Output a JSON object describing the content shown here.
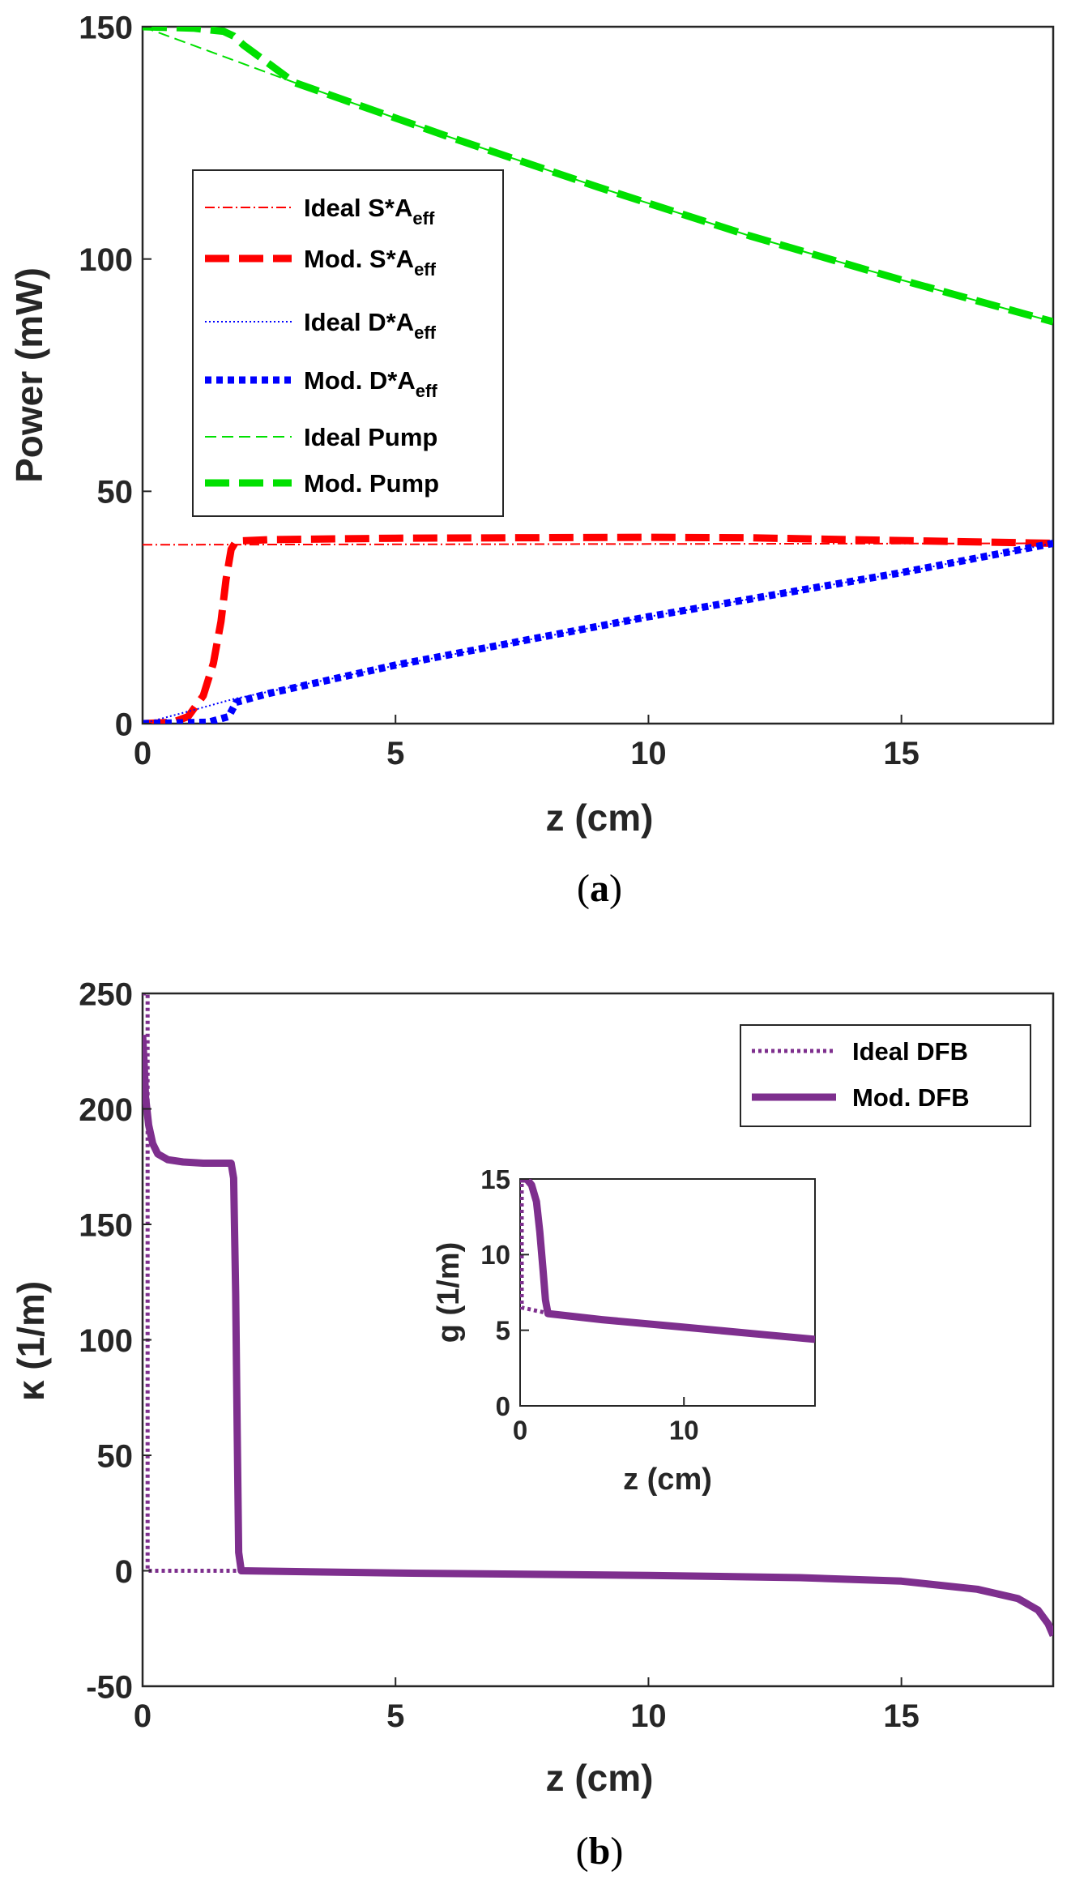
{
  "colors": {
    "red": "#ff0000",
    "blue": "#0000ff",
    "green": "#00e000",
    "purple": "#7e2f8e",
    "axis": "#262626"
  },
  "chart_data": [
    {
      "id": "a",
      "type": "line",
      "caption": "a",
      "xlabel": "z (cm)",
      "ylabel": "Power (mW)",
      "xlim": [
        0,
        18
      ],
      "ylim": [
        0,
        150
      ],
      "xticks": [
        0,
        5,
        10,
        15
      ],
      "yticks": [
        0,
        50,
        100,
        150
      ],
      "legend_position": "left-center",
      "series": [
        {
          "name": "Ideal S*A",
          "sub": "eff",
          "style": "dashdot-thin",
          "color": "#ff0000",
          "points": [
            [
              0,
              38.5
            ],
            [
              18,
              38.8
            ]
          ]
        },
        {
          "name": "Mod. S*A",
          "sub": "eff",
          "style": "dash-thick",
          "color": "#ff0000",
          "points": [
            [
              0,
              0
            ],
            [
              0.6,
              0.3
            ],
            [
              0.9,
              1.5
            ],
            [
              1.2,
              6
            ],
            [
              1.4,
              13
            ],
            [
              1.55,
              22
            ],
            [
              1.65,
              31
            ],
            [
              1.75,
              37.5
            ],
            [
              1.85,
              39.3
            ],
            [
              2.5,
              39.6
            ],
            [
              5,
              39.9
            ],
            [
              10,
              40.1
            ],
            [
              12,
              40
            ],
            [
              15,
              39.4
            ],
            [
              18,
              38.8
            ]
          ]
        },
        {
          "name": "Ideal D*A",
          "sub": "eff",
          "style": "dot-thin",
          "color": "#0000ff",
          "points": [
            [
              0,
              0
            ],
            [
              1,
              2.9
            ],
            [
              1.8,
              5.3
            ],
            [
              5,
              12.5
            ],
            [
              10,
              23
            ],
            [
              15,
              32.5
            ],
            [
              18,
              38.8
            ]
          ]
        },
        {
          "name": "Mod. D*A",
          "sub": "eff",
          "style": "dot-thick",
          "color": "#0000ff",
          "points": [
            [
              0,
              0
            ],
            [
              1.3,
              0.3
            ],
            [
              1.7,
              1.5
            ],
            [
              1.85,
              4.6
            ],
            [
              2.5,
              6.5
            ],
            [
              5,
              12.6
            ],
            [
              10,
              23
            ],
            [
              15,
              32.5
            ],
            [
              18,
              38.8
            ]
          ]
        },
        {
          "name": "Ideal Pump",
          "sub": "",
          "style": "dash-thin",
          "color": "#00e000",
          "points": [
            [
              0,
              150
            ],
            [
              3,
              138
            ],
            [
              6,
              126.5
            ],
            [
              9,
              115.5
            ],
            [
              12,
              105
            ],
            [
              15,
              95.5
            ],
            [
              18,
              86.5
            ]
          ]
        },
        {
          "name": "Mod. Pump",
          "sub": "",
          "style": "dash-thick",
          "color": "#00e000",
          "points": [
            [
              0,
              150
            ],
            [
              1,
              149.7
            ],
            [
              1.6,
              149
            ],
            [
              1.8,
              148
            ],
            [
              2,
              146
            ],
            [
              3,
              138
            ],
            [
              6,
              126.5
            ],
            [
              9,
              115.5
            ],
            [
              12,
              105
            ],
            [
              15,
              95.5
            ],
            [
              18,
              86.5
            ]
          ]
        }
      ]
    },
    {
      "id": "b",
      "type": "line",
      "caption": "b",
      "xlabel": "z (cm)",
      "ylabel": "κ (1/m)",
      "xlim": [
        0,
        18
      ],
      "ylim": [
        -50,
        250
      ],
      "xticks": [
        0,
        5,
        10,
        15
      ],
      "yticks": [
        -50,
        0,
        50,
        100,
        150,
        200,
        250
      ],
      "legend_position": "top-right",
      "series": [
        {
          "name": "Ideal DFB",
          "style": "dot-mid",
          "color": "#7e2f8e",
          "points": [
            [
              0,
              250
            ],
            [
              0.1,
              250
            ],
            [
              0.1,
              0
            ],
            [
              1.85,
              0
            ]
          ]
        },
        {
          "name": "Mod. DFB",
          "style": "solid-thick",
          "color": "#7e2f8e",
          "points": [
            [
              0,
              232
            ],
            [
              0.03,
              220
            ],
            [
              0.06,
              205
            ],
            [
              0.12,
              193
            ],
            [
              0.2,
              185
            ],
            [
              0.3,
              180.5
            ],
            [
              0.5,
              178
            ],
            [
              0.8,
              177
            ],
            [
              1.2,
              176.5
            ],
            [
              1.75,
              176.5
            ],
            [
              1.8,
              170
            ],
            [
              1.84,
              120
            ],
            [
              1.87,
              60
            ],
            [
              1.9,
              8
            ],
            [
              1.95,
              0
            ],
            [
              5,
              -1
            ],
            [
              10,
              -2
            ],
            [
              13,
              -3
            ],
            [
              15,
              -4.5
            ],
            [
              16.5,
              -8
            ],
            [
              17.3,
              -12
            ],
            [
              17.7,
              -17
            ],
            [
              17.9,
              -23
            ],
            [
              18,
              -28
            ]
          ]
        }
      ],
      "inset": {
        "xlabel": "z (cm)",
        "ylabel": "g (1/m)",
        "xlim": [
          0,
          18
        ],
        "ylim": [
          0,
          15
        ],
        "xticks": [
          0,
          10
        ],
        "yticks": [
          0,
          5,
          10,
          15
        ],
        "series": [
          {
            "name": "Ideal DFB",
            "style": "dot-mid",
            "color": "#7e2f8e",
            "points": [
              [
                0,
                15
              ],
              [
                0.1,
                15
              ],
              [
                0.1,
                6.5
              ],
              [
                1.8,
                6.1
              ]
            ]
          },
          {
            "name": "Mod. DFB",
            "style": "solid-thick",
            "color": "#7e2f8e",
            "points": [
              [
                0,
                15
              ],
              [
                0.4,
                15
              ],
              [
                0.7,
                14.6
              ],
              [
                1,
                13.5
              ],
              [
                1.2,
                11.5
              ],
              [
                1.4,
                9
              ],
              [
                1.55,
                7
              ],
              [
                1.7,
                6.1
              ],
              [
                5,
                5.7
              ],
              [
                10,
                5.2
              ],
              [
                15,
                4.7
              ],
              [
                18,
                4.4
              ]
            ]
          }
        ]
      }
    }
  ]
}
